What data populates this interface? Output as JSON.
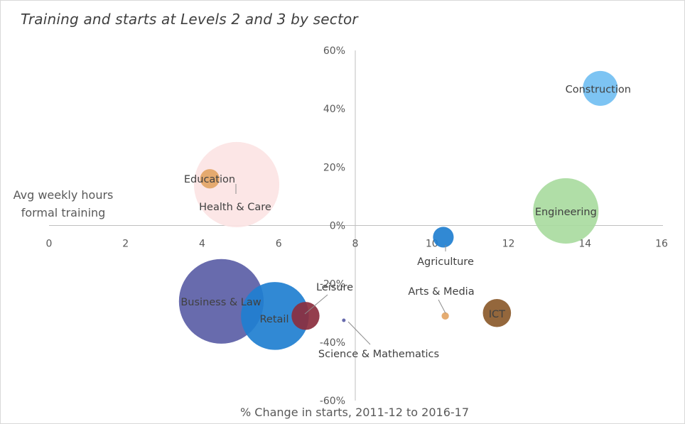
{
  "chart_data": {
    "type": "bubble",
    "title": "Training and starts at Levels 2 and 3 by sector",
    "xlabel": "Avg weekly hours formal training",
    "xlabel_lines": [
      "Avg weekly hours",
      "formal training"
    ],
    "ylabel": "% Change in starts, 2011-12 to 2016-17",
    "xlim": [
      0,
      16
    ],
    "ylim": [
      -60,
      60
    ],
    "x_ticks": [
      0,
      2,
      4,
      6,
      8,
      10,
      12,
      14,
      16
    ],
    "y_ticks": [
      60,
      40,
      20,
      0,
      -20,
      -40,
      -60
    ],
    "y_tick_labels": [
      "60%",
      "40%",
      "20%",
      "0%",
      "-20%",
      "-40%",
      "-60%"
    ],
    "gridlines": false,
    "points": [
      {
        "name": "Health & Care",
        "x": 4.9,
        "y": 14,
        "size": 3400,
        "color": "#fce4e4"
      },
      {
        "name": "Business &  Law",
        "x": 4.5,
        "y": -26,
        "size": 3350,
        "color": "#5b5ea6"
      },
      {
        "name": "Retail",
        "x": 5.9,
        "y": -31,
        "size": 2150,
        "color": "#1f7fd0"
      },
      {
        "name": "Engineering",
        "x": 13.5,
        "y": 5,
        "size": 2000,
        "color": "#a9dba0"
      },
      {
        "name": "Construction",
        "x": 14.4,
        "y": 47,
        "size": 570,
        "color": "#72bff2"
      },
      {
        "name": "ICT",
        "x": 11.7,
        "y": -30,
        "size": 370,
        "color": "#8b5a2b"
      },
      {
        "name": "Leisure",
        "x": 6.7,
        "y": -31,
        "size": 365,
        "color": "#8b2e3e"
      },
      {
        "name": "Agriculture",
        "x": 10.3,
        "y": -4,
        "size": 200,
        "color": "#1f7fd0"
      },
      {
        "name": "Education",
        "x": 4.2,
        "y": 16,
        "size": 175,
        "color": "#e3a565"
      },
      {
        "name": "Arts & Media",
        "x": 10.35,
        "y": -31,
        "size": 25,
        "color": "#e3a565"
      },
      {
        "name": "Science & Mathematics",
        "x": 7.7,
        "y": -32.5,
        "size": 5,
        "color": "#5b5ea6"
      }
    ],
    "colors": {
      "axis": "#bfbfbf",
      "leader": "#8c8c8c",
      "text": "#404040"
    }
  }
}
